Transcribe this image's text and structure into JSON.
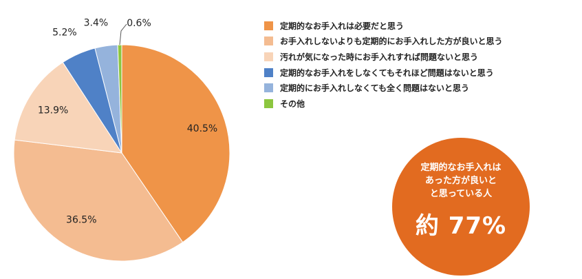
{
  "chart_data": {
    "type": "pie",
    "categories": [
      "定期的なお手入れは必要だと思う",
      "お手入れしないよりも定期的にお手入れした方が良いと思う",
      "汚れが気になった時にお手入れすれば問題ないと思う",
      "定期的なお手入れをしなくてもそれほど問題はないと思う",
      "定期的にお手入れしなくても全く問題はないと思う",
      "その他"
    ],
    "values": [
      40.5,
      36.5,
      13.9,
      5.2,
      3.4,
      0.6
    ],
    "value_labels": [
      "40.5%",
      "36.5%",
      "13.9%",
      "5.2%",
      "3.4%",
      "0.6%"
    ],
    "colors": [
      "#ef9448",
      "#f4bc91",
      "#f8d4b8",
      "#4f81c7",
      "#95b3dc",
      "#8cc63f"
    ],
    "legend": "right"
  },
  "callout": {
    "lines": [
      "定期的なお手入れは",
      "あった方が良いと",
      "と思っている人"
    ],
    "figure": "約 77%",
    "color": "#e26b20"
  }
}
